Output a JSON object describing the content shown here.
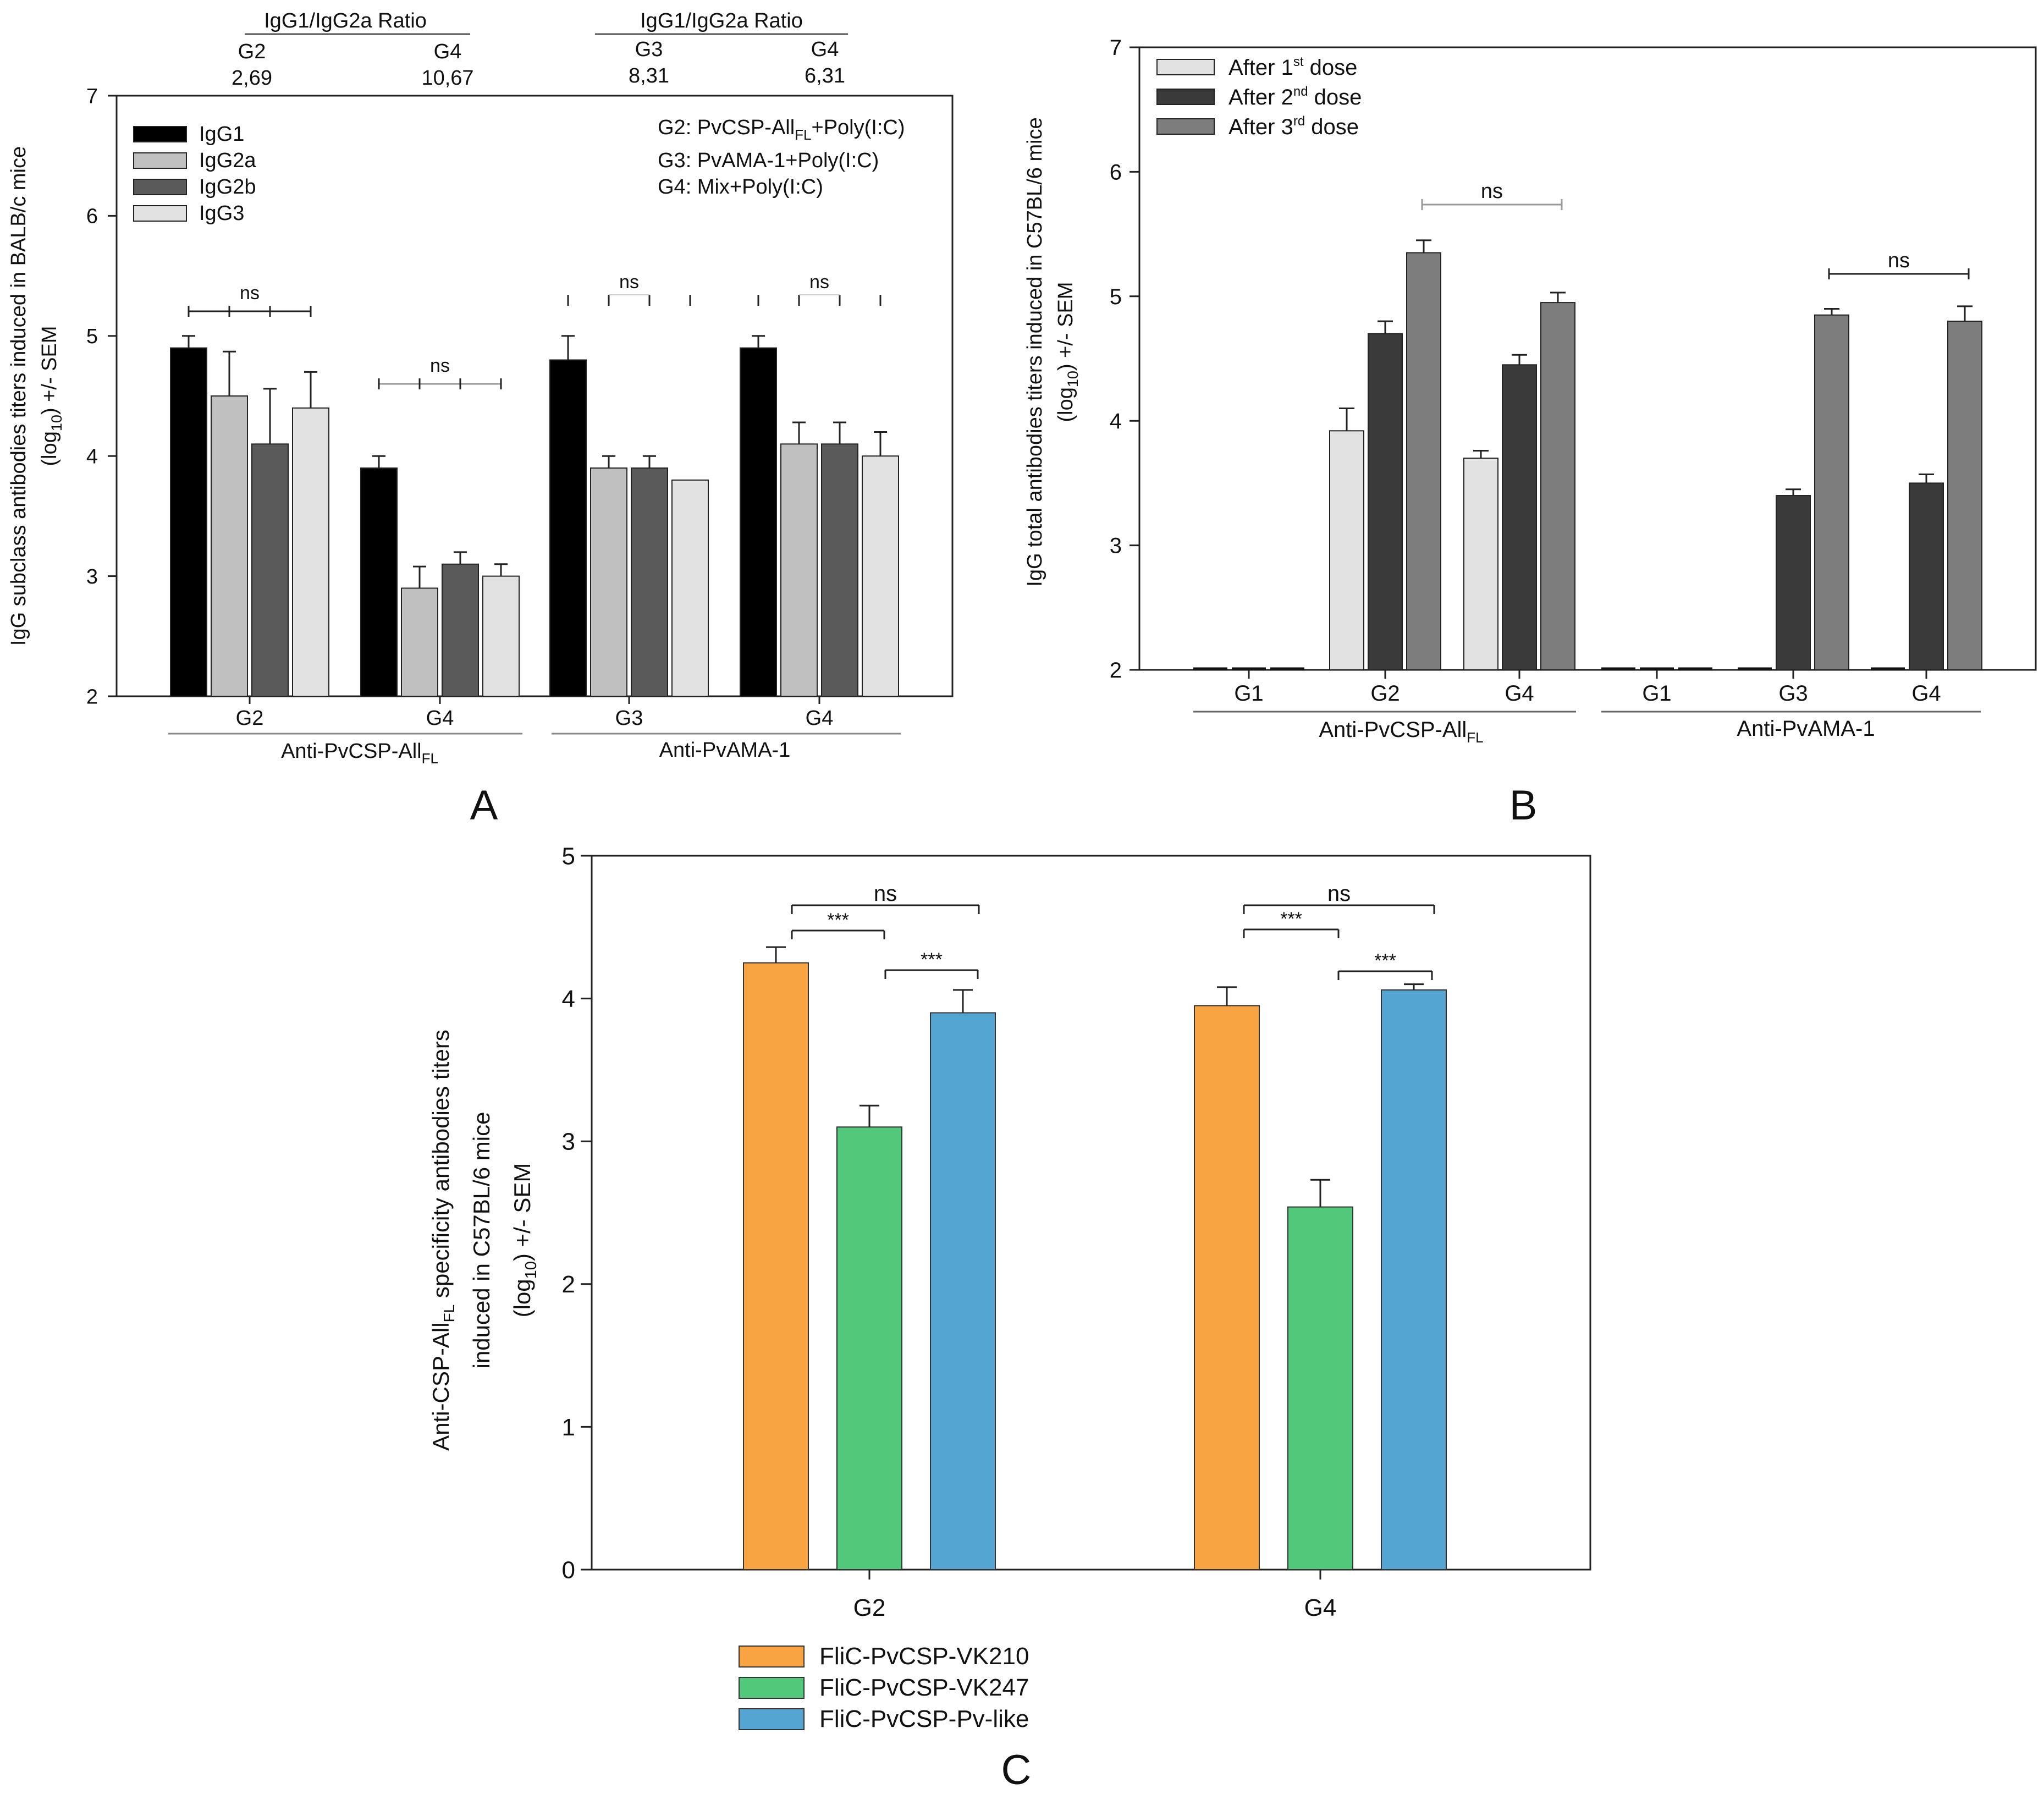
{
  "figure": {
    "panel_labels": [
      "A",
      "B",
      "C"
    ]
  },
  "chart_data": [
    {
      "panel": "A",
      "type": "bar",
      "ylabel_line1": "IgG subclass antibodies titers induced in BALB/c mice",
      "ylabel_line2": "(log10) +/- SEM",
      "ylim": [
        2,
        7
      ],
      "yticks": [
        2,
        3,
        4,
        5,
        6,
        7
      ],
      "categories": [
        "G2",
        "G4",
        "G3",
        "G4"
      ],
      "category_groups": [
        {
          "label": "Anti-PvCSP-All",
          "subscript": "FL",
          "categories": [
            0,
            1
          ]
        },
        {
          "label": "Anti-PvAMA-1",
          "subscript": "",
          "categories": [
            2,
            3
          ]
        }
      ],
      "series": [
        {
          "name": "IgG1",
          "color": "#000000",
          "values": [
            4.9,
            3.9,
            4.8,
            4.9
          ],
          "errors": [
            0.1,
            0.1,
            0.2,
            0.1
          ]
        },
        {
          "name": "IgG2a",
          "color": "#c0c0c0",
          "values": [
            4.5,
            2.9,
            3.9,
            4.1
          ],
          "errors": [
            0.37,
            0.18,
            0.1,
            0.18
          ]
        },
        {
          "name": "IgG2b",
          "color": "#5a5a5a",
          "values": [
            4.1,
            3.1,
            3.9,
            4.1
          ],
          "errors": [
            0.46,
            0.1,
            0.1,
            0.18
          ]
        },
        {
          "name": "IgG3",
          "color": "#e2e2e2",
          "values": [
            4.4,
            3.0,
            3.8,
            4.0
          ],
          "errors": [
            0.3,
            0.1,
            0.0,
            0.2
          ]
        }
      ],
      "significance": [
        "ns",
        "ns",
        "ns",
        "ns"
      ],
      "ratio_headers": [
        {
          "title": "IgG1/IgG2a Ratio",
          "groups": [
            "G2",
            "G4"
          ],
          "values": [
            "2,69",
            "10,67"
          ]
        },
        {
          "title": "IgG1/IgG2a Ratio",
          "groups": [
            "G3",
            "G4"
          ],
          "values": [
            "8,31",
            "6,31"
          ]
        }
      ],
      "annotations": [
        {
          "label": "G2: PvCSP-All",
          "subscript": "FL",
          "suffix": "+Poly(I:C)"
        },
        {
          "label": "G3: PvAMA-1+Poly(I:C)",
          "subscript": "",
          "suffix": ""
        },
        {
          "label": "G4: Mix+Poly(I:C)",
          "subscript": "",
          "suffix": ""
        }
      ]
    },
    {
      "panel": "B",
      "type": "bar",
      "ylabel_line1": "IgG total antibodies titers induced in C57BL/6 mice",
      "ylabel_line2": "(log10) +/- SEM",
      "ylim": [
        2,
        7
      ],
      "yticks": [
        2,
        3,
        4,
        5,
        6,
        7
      ],
      "categories": [
        "G1",
        "G2",
        "G4",
        "G1",
        "G3",
        "G4"
      ],
      "category_groups": [
        {
          "label": "Anti-PvCSP-All",
          "subscript": "FL",
          "categories": [
            0,
            1,
            2
          ]
        },
        {
          "label": "Anti-PvAMA-1",
          "subscript": "",
          "categories": [
            3,
            4,
            5
          ]
        }
      ],
      "series": [
        {
          "name": "After 1",
          "sup": "st",
          "tail": " dose",
          "color": "#e2e2e2",
          "values": [
            2.0,
            3.92,
            3.7,
            2.0,
            2.0,
            2.0
          ],
          "errors": [
            0,
            0.18,
            0.06,
            0,
            0,
            0
          ]
        },
        {
          "name": "After 2",
          "sup": "nd",
          "tail": " dose",
          "color": "#3a3a3a",
          "values": [
            2.0,
            4.7,
            4.45,
            2.0,
            3.4,
            3.5
          ],
          "errors": [
            0,
            0.1,
            0.08,
            0,
            0.05,
            0.07
          ]
        },
        {
          "name": "After 3",
          "sup": "rd",
          "tail": " dose",
          "color": "#7d7d7d",
          "values": [
            2.0,
            5.35,
            4.95,
            2.0,
            4.85,
            4.8
          ],
          "errors": [
            0,
            0.1,
            0.08,
            0,
            0.05,
            0.12
          ]
        }
      ],
      "significance": [
        "ns",
        "ns"
      ]
    },
    {
      "panel": "C",
      "type": "bar",
      "ylabel_line1": "Anti-CSP-All",
      "ylabel_line1_sub": "FL",
      "ylabel_line1_tail": " specificity antibodies titers",
      "ylabel_line2": "induced in C57BL/6 mice",
      "ylabel_line3": "(log10) +/- SEM",
      "ylim": [
        0,
        5
      ],
      "yticks": [
        0,
        1,
        2,
        3,
        4,
        5
      ],
      "categories": [
        "G2",
        "G4"
      ],
      "series": [
        {
          "name": "FliC-PvCSP-VK210",
          "color": "#f9a443",
          "values": [
            4.25,
            3.95
          ],
          "errors": [
            0.11,
            0.13
          ]
        },
        {
          "name": "FliC-PvCSP-VK247",
          "color": "#52c87a",
          "values": [
            3.1,
            2.54
          ],
          "errors": [
            0.15,
            0.19
          ]
        },
        {
          "name": "FliC-PvCSP-Pv-like",
          "color": "#54a5d2",
          "values": [
            3.9,
            4.06
          ],
          "errors": [
            0.16,
            0.04
          ]
        }
      ],
      "significance": [
        "ns",
        "***",
        "***",
        "ns",
        "***",
        "***"
      ]
    }
  ]
}
